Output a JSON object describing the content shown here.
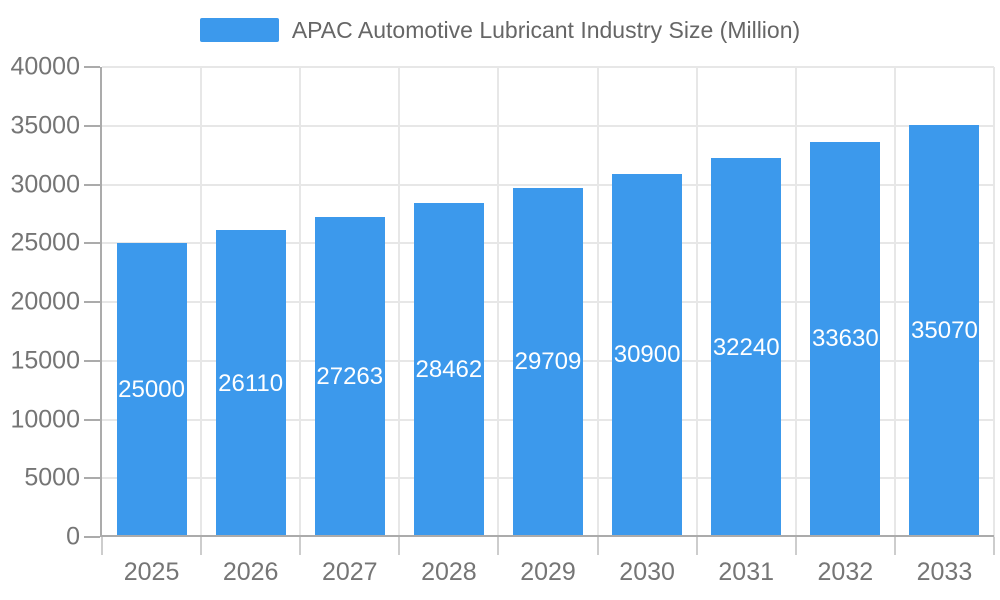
{
  "chart_data": {
    "type": "bar",
    "title": "APAC Automotive Lubricant Industry Size (Million)",
    "legend_entries": [
      "APAC Automotive Lubricant Industry Size (Million)"
    ],
    "legend_position": "top-center",
    "categories": [
      "2025",
      "2026",
      "2027",
      "2028",
      "2029",
      "2030",
      "2031",
      "2032",
      "2033"
    ],
    "values": [
      25000,
      26110,
      27263,
      28462,
      29709,
      30900,
      32240,
      33630,
      35070
    ],
    "bar_labels": [
      "25000",
      "26110",
      "27263",
      "28462",
      "29709",
      "30900",
      "32240",
      "33630",
      "35070"
    ],
    "bar_label_position": "inside-center",
    "xlabel": "",
    "ylabel": "",
    "ylim": [
      0,
      40000
    ],
    "yticks": [
      0,
      5000,
      10000,
      15000,
      20000,
      25000,
      30000,
      35000,
      40000
    ],
    "ytick_labels": [
      "0",
      "5000",
      "10000",
      "15000",
      "20000",
      "25000",
      "30000",
      "35000",
      "40000"
    ],
    "grid": true
  },
  "colors": {
    "bar": "#3C99EC",
    "bar_label": "#FFFFFF",
    "axis_line": "#ABABAB",
    "grid_line": "#E7E7E7",
    "x_tick": "#CDCDCD",
    "y_tick": "#ABABAB",
    "axis_label": "#757575",
    "legend_text": "#666666",
    "background": "#FFFFFF"
  }
}
